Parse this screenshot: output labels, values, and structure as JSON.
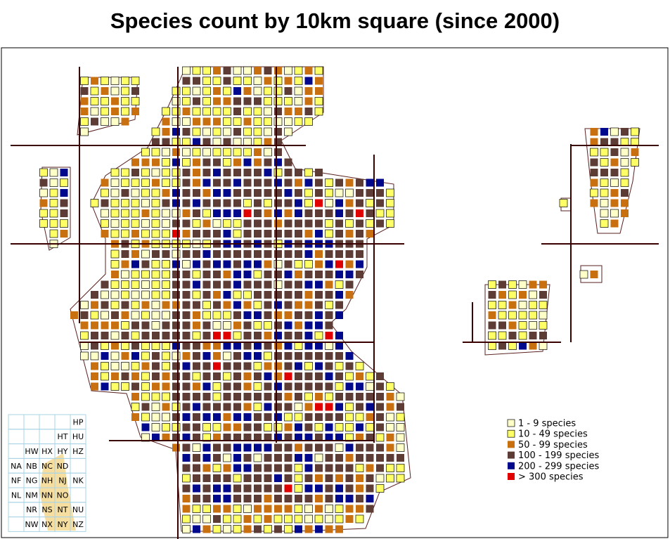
{
  "title": "Species count by 10km square (since 2000)",
  "legend": [
    {
      "label": "1 - 9 species",
      "color": "#ffffc8"
    },
    {
      "label": "10 - 49 species",
      "color": "#ffff66"
    },
    {
      "label": "50 - 99 species",
      "color": "#c8700f"
    },
    {
      "label": "100 - 199 species",
      "color": "#5c3c34"
    },
    {
      "label": "200 - 299 species",
      "color": "#00088c"
    },
    {
      "label": "> 300 species",
      "color": "#e00000"
    }
  ],
  "grid_index": [
    [
      null,
      null,
      null,
      null,
      "HP"
    ],
    [
      null,
      null,
      null,
      "HT",
      "HU"
    ],
    [
      null,
      "HW",
      "HX",
      "HY",
      "HZ"
    ],
    [
      "NA",
      "NB",
      "NC",
      "ND",
      null
    ],
    [
      "NF",
      "NG",
      "NH",
      "NJ",
      "NK"
    ],
    [
      "NL",
      "NM",
      "NN",
      "NO",
      null
    ],
    [
      null,
      "NR",
      "NS",
      "NT",
      "NU"
    ],
    [
      null,
      "NW",
      "NX",
      "NY",
      "NZ"
    ]
  ]
}
